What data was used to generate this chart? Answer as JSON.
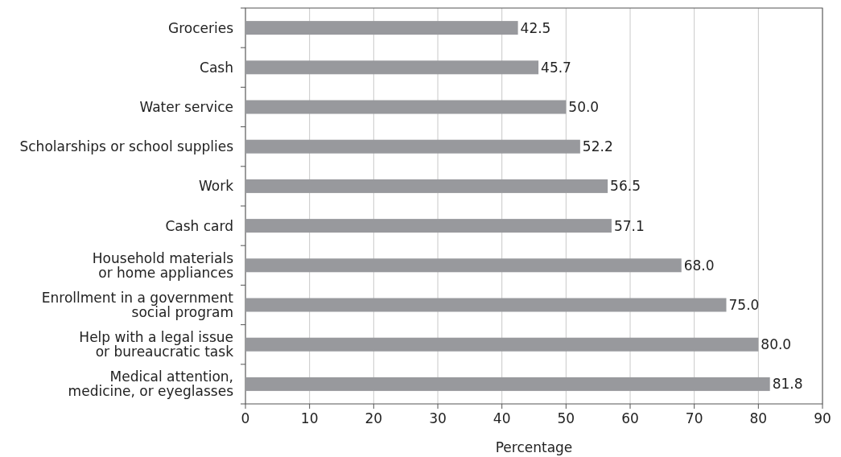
{
  "chart_data": {
    "type": "bar",
    "orientation": "horizontal",
    "xlabel": "Percentage",
    "categories": [
      "Groceries",
      "Cash",
      "Water service",
      "Scholarships or school supplies",
      "Work",
      "Cash card",
      "Household materials\nor home appliances",
      "Enrollment in a government\nsocial program",
      "Help with a legal issue\nor bureaucratic task",
      "Medical attention,\nmedicine, or eyeglasses"
    ],
    "values": [
      42.5,
      45.7,
      50.0,
      52.2,
      56.5,
      57.1,
      68.0,
      75.0,
      80.0,
      81.8
    ],
    "value_labels": [
      "42.5",
      "45.7",
      "50.0",
      "52.2",
      "56.5",
      "57.1",
      "68.0",
      "75.0",
      "80.0",
      "81.8"
    ],
    "color": "#98999d",
    "xlim": [
      0,
      90
    ],
    "xticks": [
      0,
      10,
      20,
      30,
      40,
      50,
      60,
      70,
      80,
      90
    ],
    "grid": "x"
  }
}
